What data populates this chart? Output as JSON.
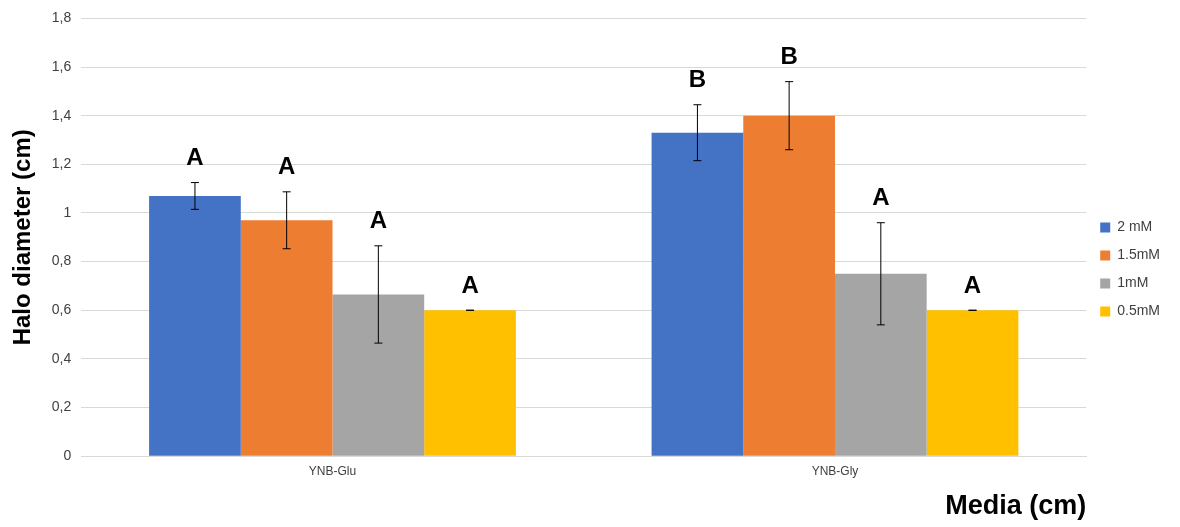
{
  "chart_data": {
    "type": "bar",
    "xlabel": "Media (cm)",
    "ylabel": "Halo diameter (cm)",
    "categories": [
      "YNB-Glu",
      "YNB-Gly"
    ],
    "series": [
      {
        "name": "2 mM",
        "color": "#4472c4",
        "values": [
          1.07,
          1.33
        ],
        "errors": [
          0.055,
          0.115
        ],
        "value_labels": [
          "A",
          "B"
        ]
      },
      {
        "name": "1.5mM",
        "color": "#ed7d31",
        "values": [
          0.97,
          1.4
        ],
        "errors": [
          0.117,
          0.14
        ],
        "value_labels": [
          "A",
          "B"
        ]
      },
      {
        "name": "1mM",
        "color": "#a5a5a5",
        "values": [
          0.665,
          0.75
        ],
        "errors": [
          0.2,
          0.21
        ],
        "value_labels": [
          "A",
          "A"
        ]
      },
      {
        "name": "0.5mM",
        "color": "#ffc000",
        "values": [
          0.6,
          0.6
        ],
        "errors": [
          0,
          0
        ],
        "value_labels": [
          "A",
          "A"
        ]
      }
    ],
    "ylim": [
      0,
      1.8
    ],
    "yticks": [
      0,
      {
        "value": 0.2,
        "label": "0,2"
      },
      {
        "value": 0.4,
        "label": "0,4"
      },
      {
        "value": 0.6,
        "label": "0,6"
      },
      {
        "value": 0.8,
        "label": "0,8"
      },
      1,
      {
        "value": 1.2,
        "label": "1,2"
      },
      {
        "value": 1.4,
        "label": "1,4"
      },
      {
        "value": 1.6,
        "label": "1,6"
      },
      {
        "value": 1.8,
        "label": "1,8"
      }
    ],
    "grid": "y",
    "legend": "right"
  }
}
